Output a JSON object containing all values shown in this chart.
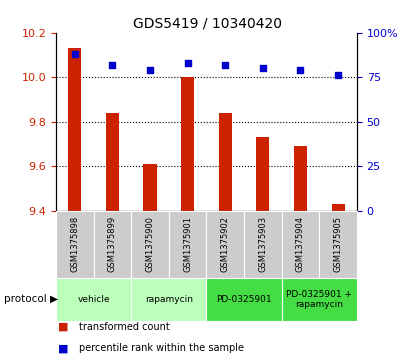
{
  "title": "GDS5419 / 10340420",
  "samples": [
    "GSM1375898",
    "GSM1375899",
    "GSM1375900",
    "GSM1375901",
    "GSM1375902",
    "GSM1375903",
    "GSM1375904",
    "GSM1375905"
  ],
  "red_values": [
    10.13,
    9.84,
    9.61,
    10.0,
    9.84,
    9.73,
    9.69,
    9.43
  ],
  "blue_values": [
    88,
    82,
    79,
    83,
    82,
    80,
    79,
    76
  ],
  "ylim_left": [
    9.4,
    10.2
  ],
  "ylim_right": [
    0,
    100
  ],
  "yticks_left": [
    9.4,
    9.6,
    9.8,
    10.0,
    10.2
  ],
  "yticks_right": [
    0,
    25,
    50,
    75,
    100
  ],
  "protocols": [
    {
      "label": "vehicle",
      "start": 0,
      "end": 2,
      "color": "#bbffbb"
    },
    {
      "label": "rapamycin",
      "start": 2,
      "end": 4,
      "color": "#bbffbb"
    },
    {
      "label": "PD-0325901",
      "start": 4,
      "end": 6,
      "color": "#44dd44"
    },
    {
      "label": "PD-0325901 +\nrapamycin",
      "start": 6,
      "end": 8,
      "color": "#44dd44"
    }
  ],
  "bar_color": "#cc2200",
  "dot_color": "#0000cc",
  "tick_color_left": "#cc2200",
  "tick_color_right": "#0000cc",
  "legend_items": [
    {
      "label": "transformed count",
      "color": "#cc2200"
    },
    {
      "label": "percentile rank within the sample",
      "color": "#0000cc"
    }
  ],
  "sample_box_color": "#cccccc",
  "bar_width": 0.35
}
